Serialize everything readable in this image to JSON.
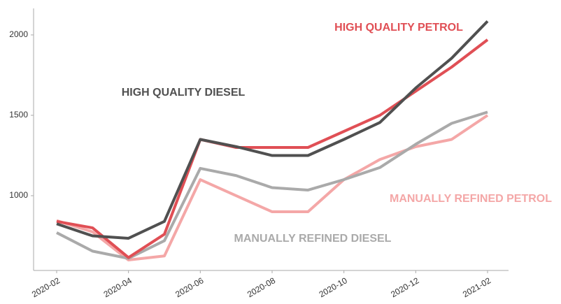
{
  "chart_data": {
    "type": "line",
    "categories": [
      "2020-02",
      null,
      "2020-04",
      null,
      "2020-06",
      null,
      "2020-08",
      null,
      "2020-10",
      null,
      "2020-12",
      null,
      "2021-02"
    ],
    "series": [
      {
        "name": "MANUALLY REFINED PETROL",
        "color": "#f4a7a7",
        "values": [
          845,
          775,
          600,
          625,
          1100,
          1000,
          900,
          900,
          1100,
          1225,
          1305,
          1350,
          1500
        ]
      },
      {
        "name": "MANUALLY REFINED DIESEL",
        "color": "#aaaaaa",
        "values": [
          770,
          655,
          610,
          720,
          1170,
          1125,
          1050,
          1035,
          1100,
          1175,
          1320,
          1450,
          1520
        ]
      },
      {
        "name": "HIGH QUALITY PETROL",
        "color": "#e04f55",
        "values": [
          840,
          800,
          615,
          760,
          1350,
          1300,
          1300,
          1300,
          1400,
          1500,
          1650,
          1800,
          1970
        ]
      },
      {
        "name": "HIGH QUALITY DIESEL",
        "color": "#505050",
        "values": [
          825,
          750,
          735,
          840,
          1350,
          1305,
          1250,
          1250,
          1350,
          1455,
          1670,
          1855,
          2085
        ]
      }
    ],
    "ylim": [
      535,
      2165
    ],
    "yticks": [
      1000,
      1500,
      2000
    ]
  }
}
